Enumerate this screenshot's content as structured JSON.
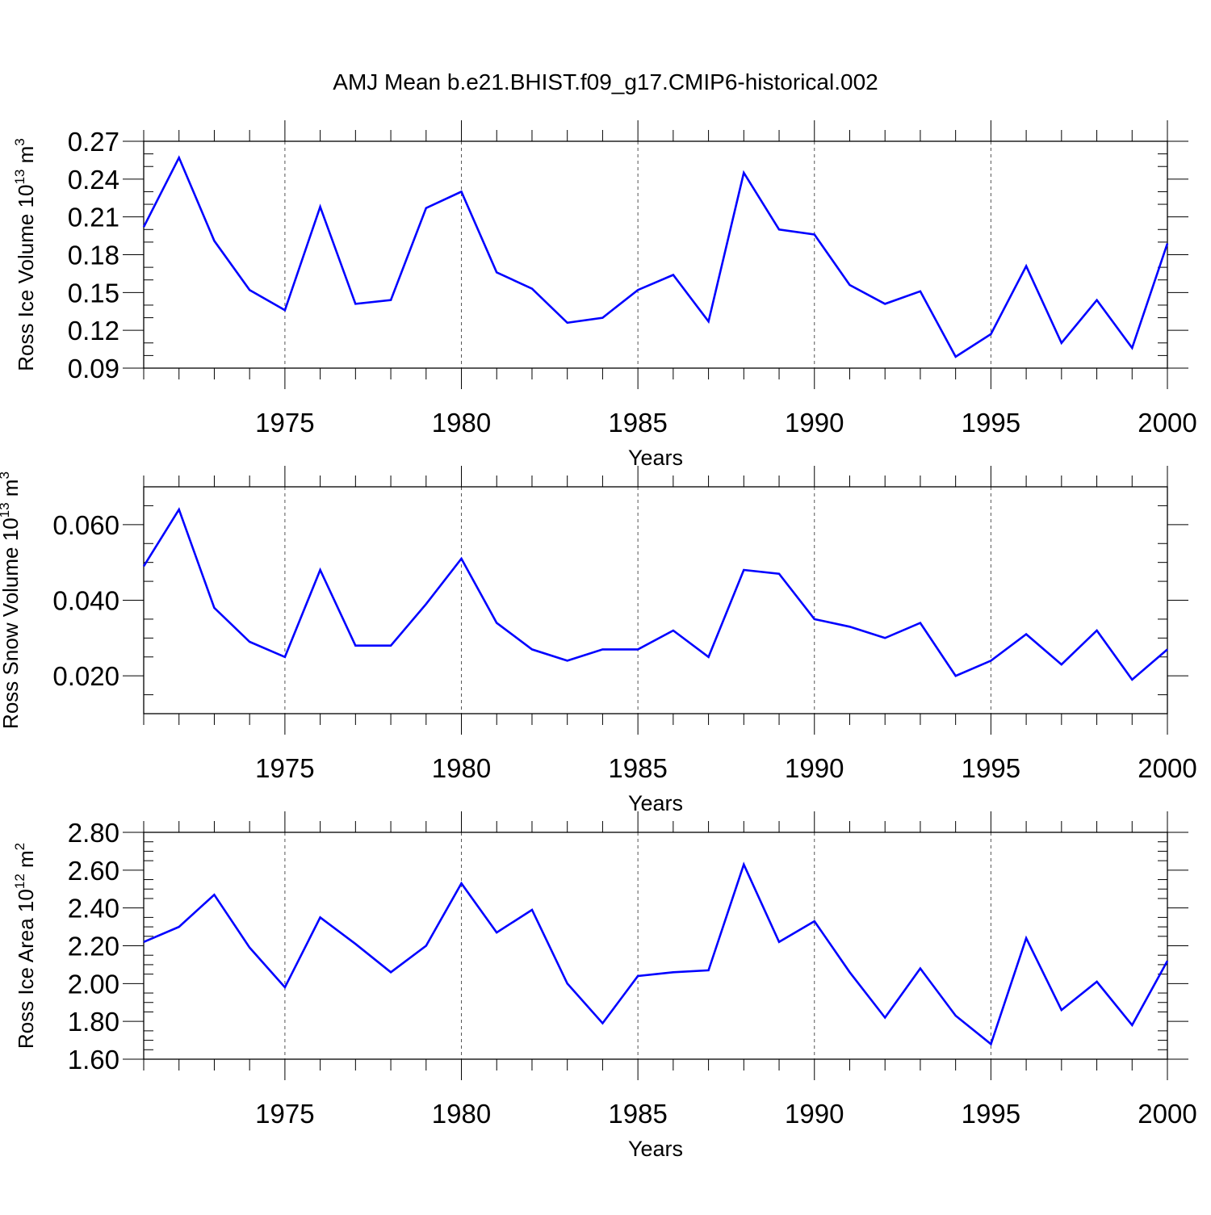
{
  "title": "AMJ Mean b.e21.BHIST.f09_g17.CMIP6-historical.002",
  "line_color": "#0000ff",
  "chart_data": [
    {
      "type": "line",
      "ylabel": "Ross Ice Volume 10",
      "ylabel_exp": "13",
      "ylabel_unit": " m",
      "ylabel_unit_exp": "3",
      "xlabel": "Years",
      "xlim": [
        1971,
        2000
      ],
      "ylim": [
        0.09,
        0.27
      ],
      "yticks": [
        0.09,
        0.12,
        0.15,
        0.18,
        0.21,
        0.24,
        0.27
      ],
      "ytick_labels": [
        "0.09",
        "0.12",
        "0.15",
        "0.18",
        "0.21",
        "0.24",
        "0.27"
      ],
      "yminor_step": 0.01,
      "xticks": [
        1975,
        1980,
        1985,
        1990,
        1995,
        2000
      ],
      "xtick_labels": [
        "1975",
        "1980",
        "1985",
        "1990",
        "1995",
        "2000"
      ],
      "grid": "vertical dashed at major x ticks",
      "x": [
        1971,
        1972,
        1973,
        1974,
        1975,
        1976,
        1977,
        1978,
        1979,
        1980,
        1981,
        1982,
        1983,
        1984,
        1985,
        1986,
        1987,
        1988,
        1989,
        1990,
        1991,
        1992,
        1993,
        1994,
        1995,
        1996,
        1997,
        1998,
        1999,
        2000
      ],
      "y": [
        0.202,
        0.257,
        0.191,
        0.152,
        0.136,
        0.218,
        0.141,
        0.144,
        0.217,
        0.23,
        0.166,
        0.153,
        0.126,
        0.13,
        0.152,
        0.164,
        0.127,
        0.245,
        0.2,
        0.196,
        0.156,
        0.141,
        0.151,
        0.099,
        0.117,
        0.171,
        0.11,
        0.144,
        0.106,
        0.189
      ]
    },
    {
      "type": "line",
      "ylabel": "Ross Snow Volume 10",
      "ylabel_exp": "13",
      "ylabel_unit": " m",
      "ylabel_unit_exp": "3",
      "xlabel": "Years",
      "xlim": [
        1971,
        2000
      ],
      "ylim": [
        0.01,
        0.07
      ],
      "yticks": [
        0.02,
        0.04,
        0.06
      ],
      "ytick_labels": [
        "0.020",
        "0.040",
        "0.060"
      ],
      "yminor_step": 0.005,
      "xticks": [
        1975,
        1980,
        1985,
        1990,
        1995,
        2000
      ],
      "xtick_labels": [
        "1975",
        "1980",
        "1985",
        "1990",
        "1995",
        "2000"
      ],
      "grid": "vertical dashed at major x ticks",
      "x": [
        1971,
        1972,
        1973,
        1974,
        1975,
        1976,
        1977,
        1978,
        1979,
        1980,
        1981,
        1982,
        1983,
        1984,
        1985,
        1986,
        1987,
        1988,
        1989,
        1990,
        1991,
        1992,
        1993,
        1994,
        1995,
        1996,
        1997,
        1998,
        1999,
        2000
      ],
      "y": [
        0.049,
        0.064,
        0.038,
        0.029,
        0.025,
        0.048,
        0.028,
        0.028,
        0.039,
        0.051,
        0.034,
        0.027,
        0.024,
        0.027,
        0.027,
        0.032,
        0.025,
        0.048,
        0.047,
        0.035,
        0.033,
        0.03,
        0.034,
        0.02,
        0.024,
        0.031,
        0.023,
        0.032,
        0.019,
        0.027
      ]
    },
    {
      "type": "line",
      "ylabel": "Ross Ice Area 10",
      "ylabel_exp": "12",
      "ylabel_unit": " m",
      "ylabel_unit_exp": "2",
      "xlabel": "Years",
      "xlim": [
        1971,
        2000
      ],
      "ylim": [
        1.6,
        2.8
      ],
      "yticks": [
        1.6,
        1.8,
        2.0,
        2.2,
        2.4,
        2.6,
        2.8
      ],
      "ytick_labels": [
        "1.60",
        "1.80",
        "2.00",
        "2.20",
        "2.40",
        "2.60",
        "2.80"
      ],
      "yminor_step": 0.05,
      "xticks": [
        1975,
        1980,
        1985,
        1990,
        1995,
        2000
      ],
      "xtick_labels": [
        "1975",
        "1980",
        "1985",
        "1990",
        "1995",
        "2000"
      ],
      "grid": "vertical dashed at major x ticks",
      "x": [
        1971,
        1972,
        1973,
        1974,
        1975,
        1976,
        1977,
        1978,
        1979,
        1980,
        1981,
        1982,
        1983,
        1984,
        1985,
        1986,
        1987,
        1988,
        1989,
        1990,
        1991,
        1992,
        1993,
        1994,
        1995,
        1996,
        1997,
        1998,
        1999,
        2000
      ],
      "y": [
        2.22,
        2.3,
        2.47,
        2.19,
        1.98,
        2.35,
        2.21,
        2.06,
        2.2,
        2.53,
        2.27,
        2.39,
        2.0,
        1.79,
        2.04,
        2.06,
        2.07,
        2.63,
        2.22,
        2.33,
        2.06,
        1.82,
        2.08,
        1.83,
        1.68,
        2.24,
        1.86,
        2.01,
        1.78,
        2.12
      ]
    }
  ]
}
